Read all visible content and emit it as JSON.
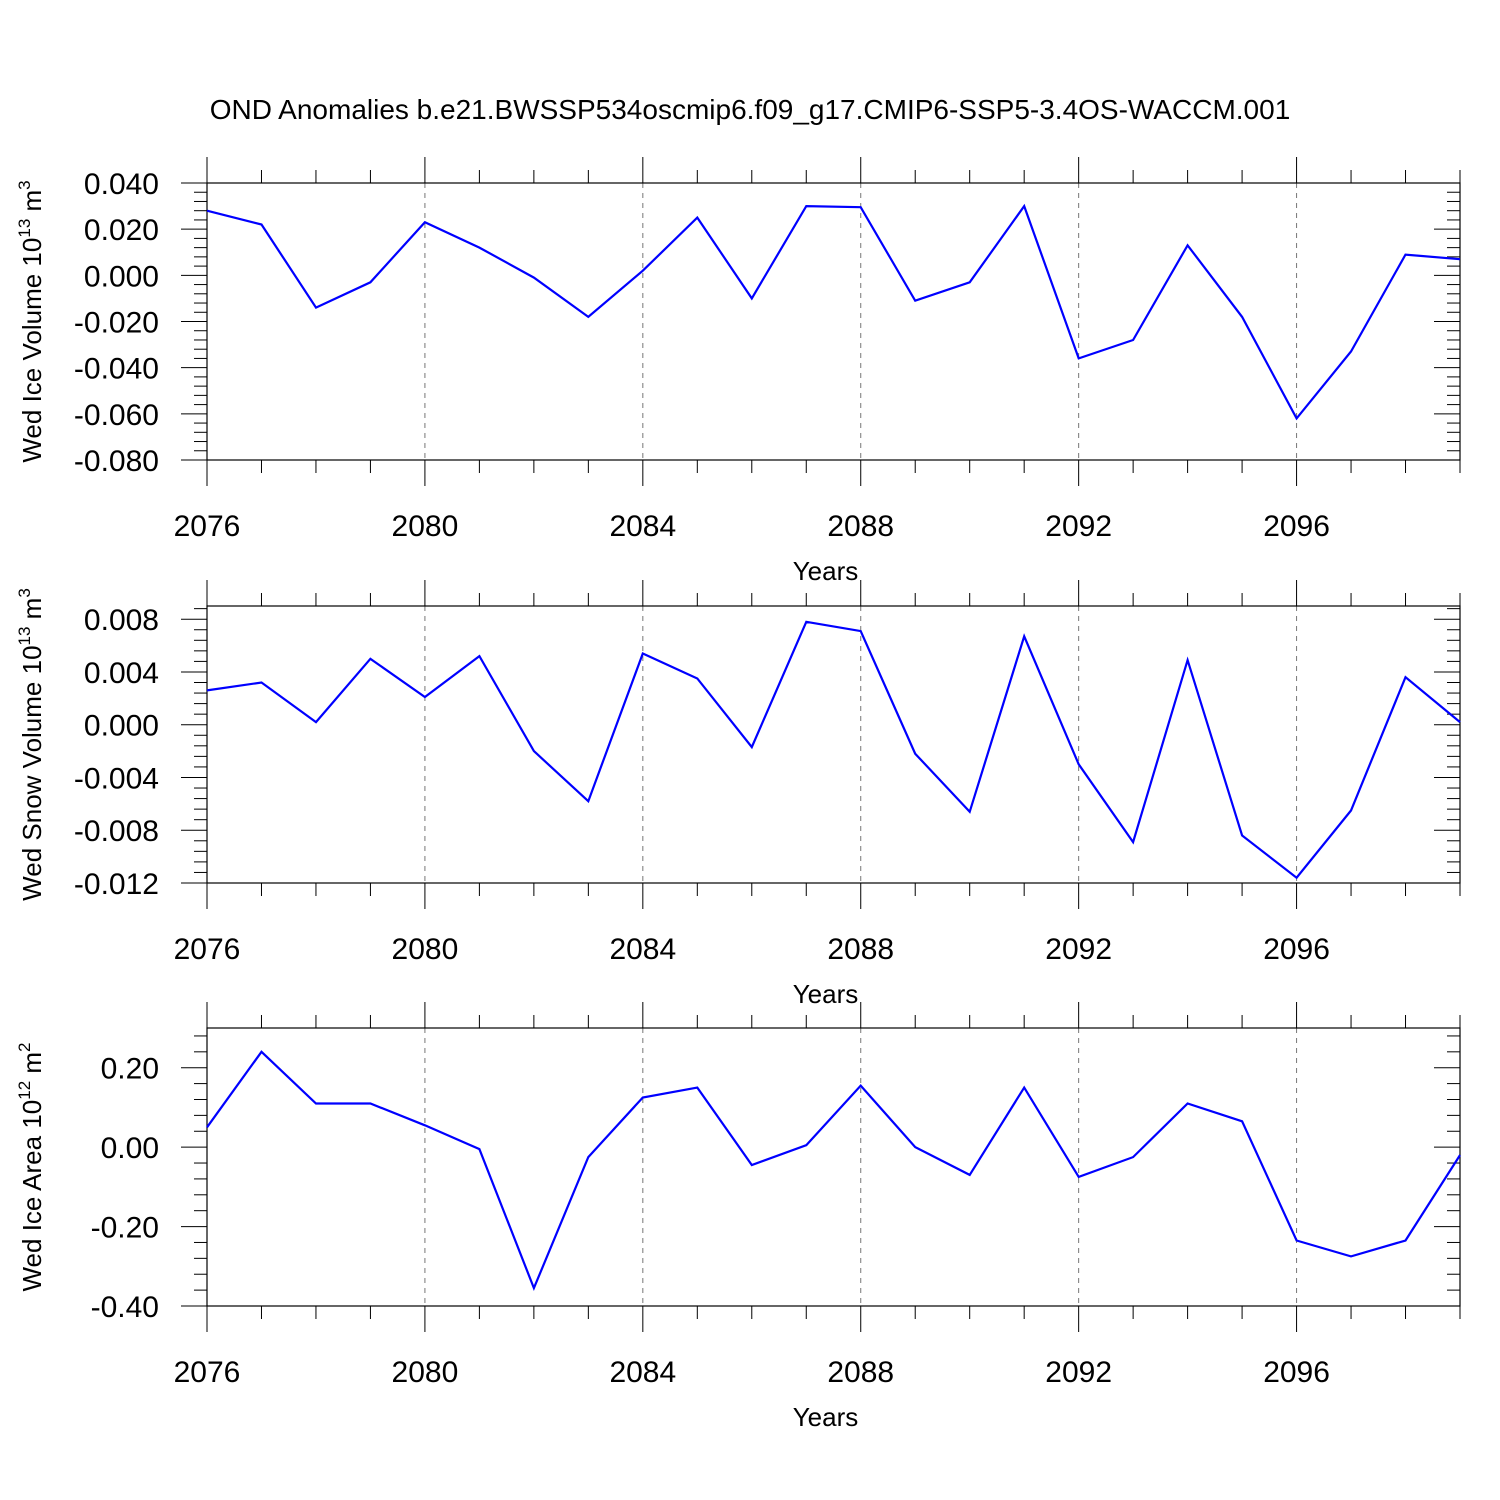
{
  "title": "OND Anomalies b.e21.BWSSP534oscmip6.f09_g17.CMIP6-SSP5-3.4OS-WACCM.001",
  "series_color": "#0000ff",
  "chart_data": [
    {
      "type": "line",
      "name": "ice-volume",
      "ylabel_main": "Wed Ice Volume 10",
      "ylabel_exp": "13",
      "ylabel_unit": " m",
      "ylabel_unit_exp": "3",
      "xlabel": "Years",
      "xlim": [
        2076,
        2099
      ],
      "ylim": [
        -0.08,
        0.04
      ],
      "xticks": [
        2076,
        2080,
        2084,
        2088,
        2092,
        2096
      ],
      "xtick_labels": [
        "2076",
        "2080",
        "2084",
        "2088",
        "2092",
        "2096"
      ],
      "yticks": [
        -0.08,
        -0.06,
        -0.04,
        -0.02,
        0.0,
        0.02,
        0.04
      ],
      "ytick_labels": [
        "-0.080",
        "-0.060",
        "-0.040",
        "-0.020",
        "0.000",
        "0.020",
        "0.040"
      ],
      "x": [
        2076,
        2077,
        2078,
        2079,
        2080,
        2081,
        2082,
        2083,
        2084,
        2085,
        2086,
        2087,
        2088,
        2089,
        2090,
        2091,
        2092,
        2093,
        2094,
        2095,
        2096,
        2097,
        2098,
        2099
      ],
      "values": [
        0.028,
        0.022,
        -0.014,
        -0.003,
        0.023,
        0.012,
        -0.001,
        -0.018,
        0.002,
        0.025,
        -0.01,
        0.03,
        0.0295,
        -0.011,
        -0.003,
        0.03,
        -0.036,
        -0.028,
        0.013,
        -0.018,
        -0.062,
        -0.033,
        0.009,
        0.007
      ]
    },
    {
      "type": "line",
      "name": "snow-volume",
      "ylabel_main": "Wed Snow Volume 10",
      "ylabel_exp": "13",
      "ylabel_unit": " m",
      "ylabel_unit_exp": "3",
      "xlabel": "Years",
      "xlim": [
        2076,
        2099
      ],
      "ylim": [
        -0.012,
        0.009
      ],
      "xticks": [
        2076,
        2080,
        2084,
        2088,
        2092,
        2096
      ],
      "xtick_labels": [
        "2076",
        "2080",
        "2084",
        "2088",
        "2092",
        "2096"
      ],
      "yticks": [
        -0.012,
        -0.008,
        -0.004,
        0.0,
        0.004,
        0.008
      ],
      "ytick_labels": [
        "-0.012",
        "-0.008",
        "-0.004",
        "0.000",
        "0.004",
        "0.008"
      ],
      "x": [
        2076,
        2077,
        2078,
        2079,
        2080,
        2081,
        2082,
        2083,
        2084,
        2085,
        2086,
        2087,
        2088,
        2089,
        2090,
        2091,
        2092,
        2093,
        2094,
        2095,
        2096,
        2097,
        2098,
        2099
      ],
      "values": [
        0.0026,
        0.0032,
        0.0002,
        0.005,
        0.0021,
        0.0052,
        -0.002,
        -0.0058,
        0.0054,
        0.0035,
        -0.0017,
        0.0078,
        0.0071,
        -0.0022,
        -0.0066,
        0.0067,
        -0.003,
        -0.0089,
        0.0049,
        -0.0084,
        -0.0116,
        -0.0065,
        0.0036,
        0.0002
      ]
    },
    {
      "type": "line",
      "name": "ice-area",
      "ylabel_main": "Wed Ice Area 10",
      "ylabel_exp": "12",
      "ylabel_unit": " m",
      "ylabel_unit_exp": "2",
      "xlabel": "Years",
      "xlim": [
        2076,
        2099
      ],
      "ylim": [
        -0.4,
        0.3
      ],
      "xticks": [
        2076,
        2080,
        2084,
        2088,
        2092,
        2096
      ],
      "xtick_labels": [
        "2076",
        "2080",
        "2084",
        "2088",
        "2092",
        "2096"
      ],
      "yticks": [
        -0.4,
        -0.2,
        0.0,
        0.2
      ],
      "ytick_labels": [
        "-0.40",
        "-0.20",
        "0.00",
        "0.20"
      ],
      "x": [
        2076,
        2077,
        2078,
        2079,
        2080,
        2081,
        2082,
        2083,
        2084,
        2085,
        2086,
        2087,
        2088,
        2089,
        2090,
        2091,
        2092,
        2093,
        2094,
        2095,
        2096,
        2097,
        2098,
        2099
      ],
      "values": [
        0.05,
        0.24,
        0.11,
        0.11,
        0.055,
        -0.005,
        -0.355,
        -0.025,
        0.125,
        0.15,
        -0.045,
        0.005,
        0.155,
        0.0,
        -0.07,
        0.15,
        -0.075,
        -0.025,
        0.11,
        0.065,
        -0.235,
        -0.275,
        -0.235,
        -0.02
      ]
    }
  ]
}
